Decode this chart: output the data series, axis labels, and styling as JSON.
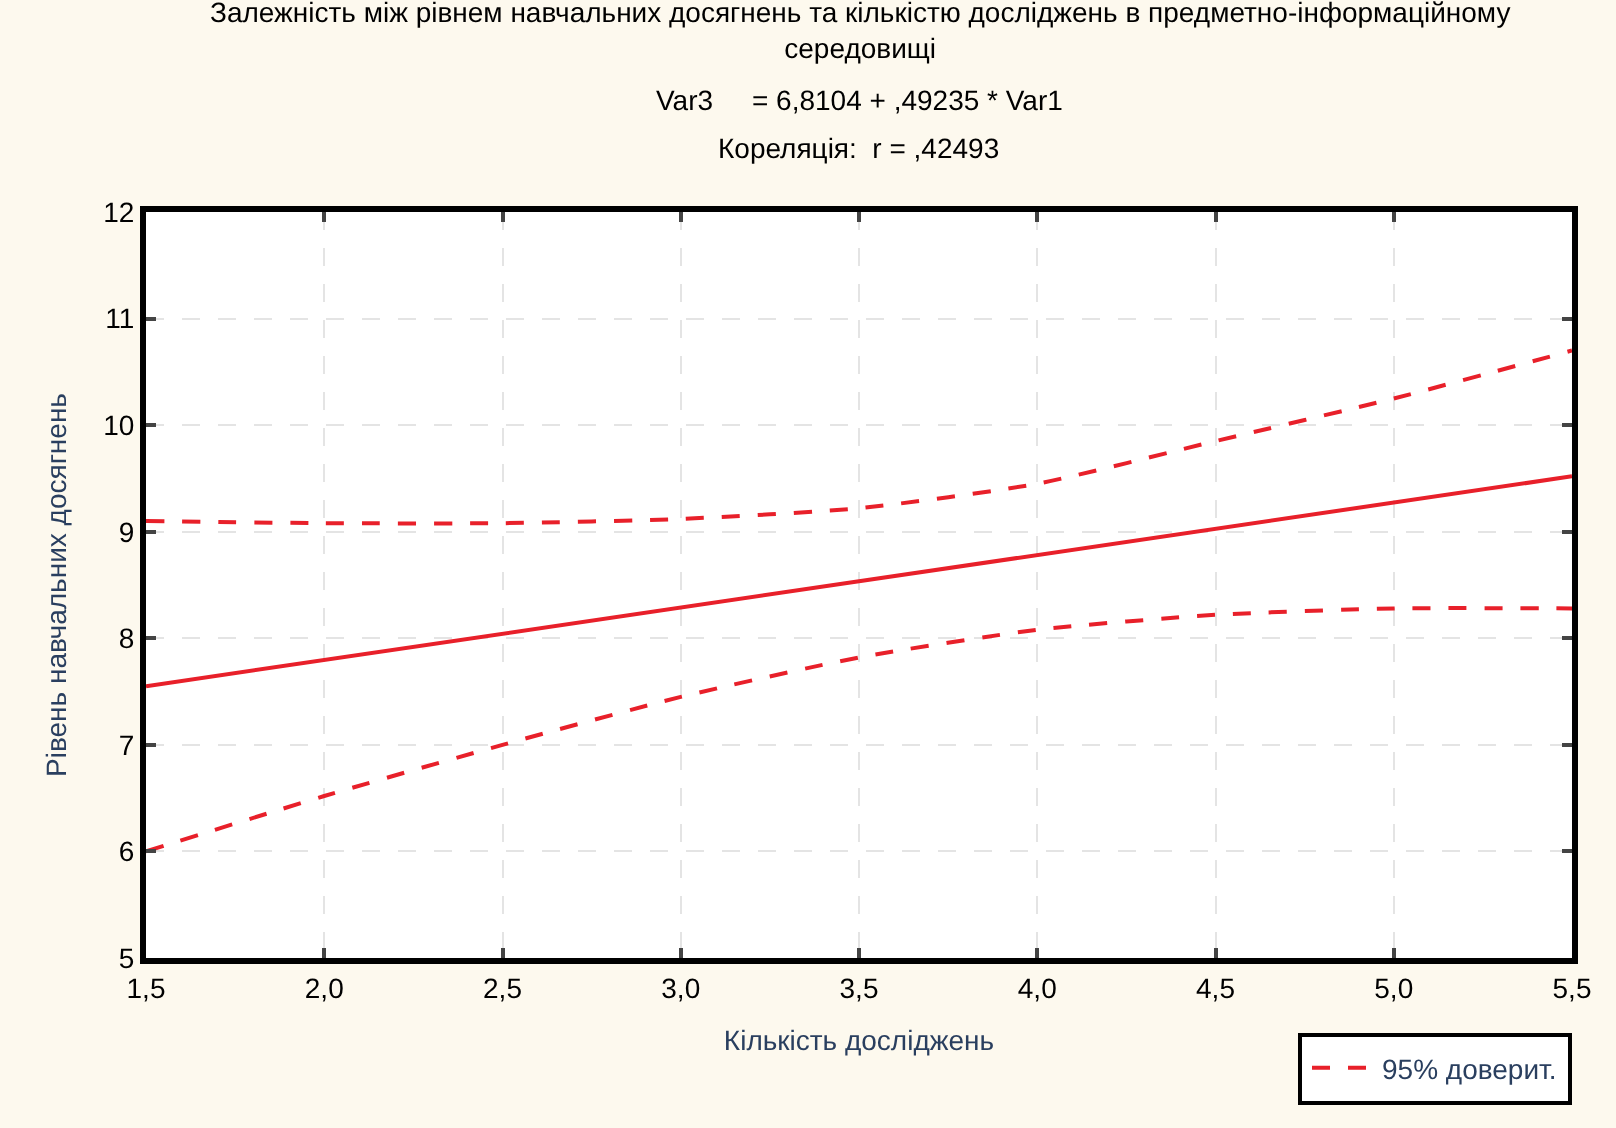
{
  "chart_data": {
    "type": "line",
    "title": "Залежність між рівнем навчальних досягнень та кількістю досліджень в предметно-інформаційному середовищі",
    "subtitle": "Var3     = 6,8104 + ,49235 * Var1",
    "annotations": [
      "Кореляція:  r = ,42493"
    ],
    "xlabel": "Кількість досліджень",
    "ylabel": "Рівень навчальних досягнень",
    "series": [
      {
        "color": "#e8202a",
        "line_style": "solid",
        "x": [
          1.5,
          5.5
        ],
        "values": [
          7.55,
          9.52
        ]
      },
      {
        "name": "95% доверит.",
        "color": "#e8202a",
        "line_style": "dashed",
        "x": [
          1.5,
          2.0,
          2.5,
          3.0,
          3.5,
          4.0,
          4.5,
          5.0,
          5.5
        ],
        "values": [
          9.1,
          9.08,
          9.08,
          9.12,
          9.22,
          9.45,
          9.85,
          10.25,
          10.7
        ]
      },
      {
        "color": "#e8202a",
        "line_style": "dashed",
        "x": [
          1.5,
          2.0,
          2.5,
          3.0,
          3.5,
          4.0,
          4.5,
          5.0,
          5.5
        ],
        "values": [
          6.0,
          6.52,
          7.0,
          7.45,
          7.82,
          8.08,
          8.22,
          8.28,
          8.28
        ]
      }
    ],
    "xlim": [
      1.5,
      5.5
    ],
    "xticks": [
      {
        "value": 1.5,
        "label": "1,5"
      },
      {
        "value": 2.0,
        "label": "2,0"
      },
      {
        "value": 2.5,
        "label": "2,5"
      },
      {
        "value": 3.0,
        "label": "3,0"
      },
      {
        "value": 3.5,
        "label": "3,5"
      },
      {
        "value": 4.0,
        "label": "4,0"
      },
      {
        "value": 4.5,
        "label": "4,5"
      },
      {
        "value": 5.0,
        "label": "5,0"
      },
      {
        "value": 5.5,
        "label": "5,5"
      }
    ],
    "ylim": [
      5,
      12
    ],
    "yticks": [
      5,
      6,
      7,
      8,
      9,
      10,
      11,
      12
    ],
    "grid": true,
    "legend": "bottom right",
    "marker": "none"
  }
}
